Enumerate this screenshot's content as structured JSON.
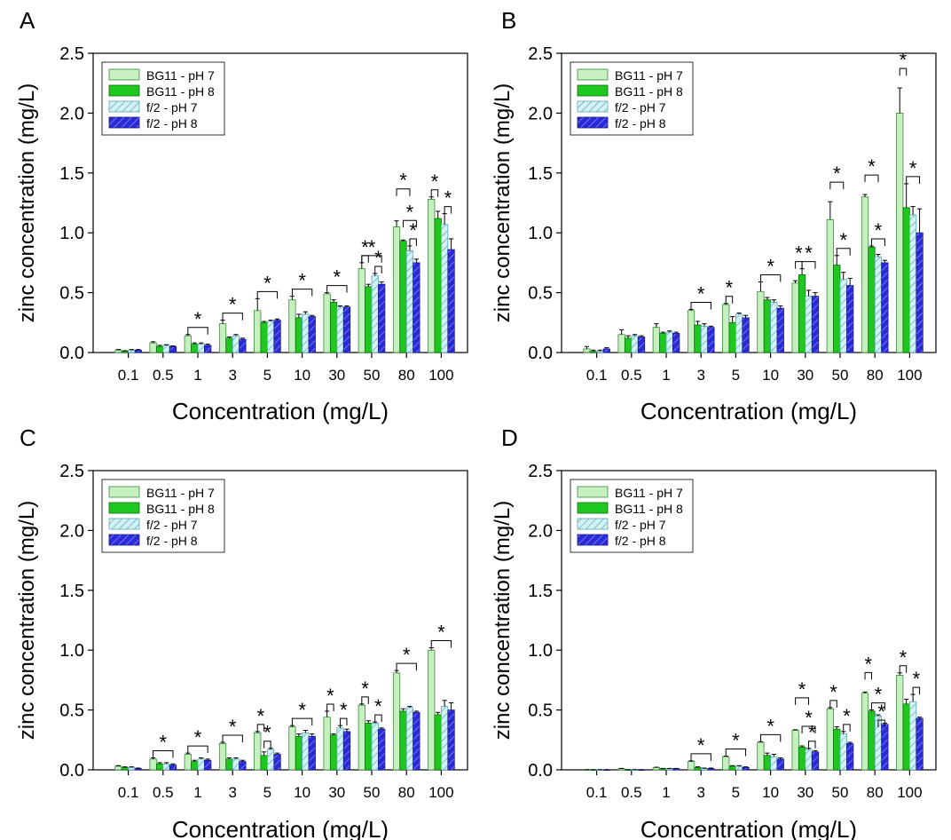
{
  "chart_data": [
    {
      "panel": "A",
      "type": "bar",
      "ylabel": "zinc concentration (mg/L)",
      "xlabel": "Concentration (mg/L)",
      "ylim": [
        0,
        2.5
      ],
      "yticks": [
        "0.0",
        "0.5",
        "1.0",
        "1.5",
        "2.0",
        "2.5"
      ],
      "categories": [
        "0.1",
        "0.5",
        "1",
        "3",
        "5",
        "10",
        "30",
        "50",
        "80",
        "100"
      ],
      "legend_position": "top-left",
      "series": [
        {
          "name": "BG11 - pH 7",
          "values": [
            0.02,
            0.08,
            0.14,
            0.24,
            0.35,
            0.44,
            0.49,
            0.7,
            1.05,
            1.28
          ],
          "errors": [
            0.005,
            0.01,
            0.01,
            0.03,
            0.1,
            0.03,
            0.01,
            0.05,
            0.05,
            0.02
          ]
        },
        {
          "name": "BG11 - pH 8",
          "values": [
            0.01,
            0.05,
            0.07,
            0.12,
            0.25,
            0.29,
            0.42,
            0.55,
            0.93,
            1.12
          ],
          "errors": [
            0.005,
            0.01,
            0.01,
            0.01,
            0.01,
            0.03,
            0.02,
            0.02,
            0.01,
            0.06
          ]
        },
        {
          "name": "f/2 - pH 7",
          "values": [
            0.02,
            0.06,
            0.07,
            0.14,
            0.26,
            0.32,
            0.38,
            0.64,
            0.85,
            1.07
          ],
          "errors": [
            0.005,
            0.005,
            0.01,
            0.01,
            0.01,
            0.02,
            0.01,
            0.02,
            0.04,
            0.09
          ]
        },
        {
          "name": "f/2 - pH 8",
          "values": [
            0.02,
            0.05,
            0.06,
            0.11,
            0.27,
            0.3,
            0.38,
            0.57,
            0.75,
            0.86
          ],
          "errors": [
            0.005,
            0.005,
            0.01,
            0.01,
            0.01,
            0.01,
            0.01,
            0.02,
            0.03,
            0.09
          ]
        }
      ],
      "significance": [
        {
          "from": 0,
          "to": 3,
          "height": 1
        },
        {
          "from": 0,
          "to": 3,
          "height": 1
        },
        {
          "from": 0,
          "to": 3,
          "height": 1
        },
        {
          "from": 0,
          "to": 3,
          "height": 1
        },
        {
          "from": 0,
          "to": 3,
          "height": 1
        },
        {
          "from": 0,
          "to": 3,
          "height": 1
        },
        {
          "from": 0,
          "to": 1,
          "height": 1
        },
        {
          "from": 2,
          "to": 3,
          "height": 1
        },
        {
          "from": 0,
          "to": 2,
          "height": 3
        },
        {
          "from": 1,
          "to": 3,
          "height": 2
        },
        {
          "from": 2,
          "to": 3,
          "height": 1
        },
        {
          "from": 0,
          "to": 1,
          "height": 1
        },
        {
          "from": 2,
          "to": 3,
          "height": 1
        }
      ],
      "significance_cat": [
        2,
        3,
        4,
        5,
        6,
        7,
        7,
        7,
        8,
        8,
        8,
        9,
        9
      ]
    },
    {
      "panel": "B",
      "type": "bar",
      "ylabel": "zinc concentration (mg/L)",
      "xlabel": "Concentration (mg/L)",
      "ylim": [
        0,
        2.5
      ],
      "yticks": [
        "0.0",
        "0.5",
        "1.0",
        "1.5",
        "2.0",
        "2.5"
      ],
      "categories": [
        "0.1",
        "0.5",
        "1",
        "3",
        "5",
        "10",
        "30",
        "50",
        "80",
        "100"
      ],
      "legend_position": "top-left",
      "series": [
        {
          "name": "BG11 - pH 7",
          "values": [
            0.03,
            0.15,
            0.21,
            0.35,
            0.4,
            0.51,
            0.58,
            1.11,
            1.3,
            2.0
          ],
          "errors": [
            0.02,
            0.04,
            0.03,
            0.01,
            0.01,
            0.08,
            0.02,
            0.15,
            0.02,
            0.21
          ]
        },
        {
          "name": "BG11 - pH 8",
          "values": [
            0.01,
            0.12,
            0.16,
            0.23,
            0.25,
            0.44,
            0.65,
            0.73,
            0.88,
            1.21
          ],
          "errors": [
            0.01,
            0.02,
            0.01,
            0.03,
            0.05,
            0.02,
            0.05,
            0.08,
            0.01,
            0.2
          ]
        },
        {
          "name": "f/2 - pH 7",
          "values": [
            0.01,
            0.14,
            0.17,
            0.22,
            0.32,
            0.42,
            0.47,
            0.61,
            0.8,
            1.15
          ],
          "errors": [
            0.01,
            0.01,
            0.01,
            0.02,
            0.01,
            0.02,
            0.05,
            0.06,
            0.02,
            0.07
          ]
        },
        {
          "name": "f/2 - pH 8",
          "values": [
            0.03,
            0.13,
            0.16,
            0.21,
            0.29,
            0.37,
            0.47,
            0.56,
            0.75,
            1.0
          ],
          "errors": [
            0.01,
            0.01,
            0.01,
            0.01,
            0.02,
            0.02,
            0.03,
            0.06,
            0.02,
            0.2
          ]
        }
      ],
      "significance": [
        {
          "from": 0,
          "to": 3,
          "height": 1
        },
        {
          "from": 0,
          "to": 1,
          "height": 1
        },
        {
          "from": 0,
          "to": 3,
          "height": 1
        },
        {
          "from": 0,
          "to": 1,
          "height": 1
        },
        {
          "from": 1,
          "to": 3,
          "height": 1
        },
        {
          "from": 0,
          "to": 2,
          "height": 2
        },
        {
          "from": 1,
          "to": 3,
          "height": 1
        },
        {
          "from": 0,
          "to": 2,
          "height": 2
        },
        {
          "from": 1,
          "to": 3,
          "height": 1
        },
        {
          "from": 0,
          "to": 1,
          "height": 2
        },
        {
          "from": 1,
          "to": 3,
          "height": 1
        }
      ],
      "significance_cat": [
        3,
        4,
        5,
        6,
        6,
        7,
        7,
        8,
        8,
        9,
        9
      ]
    },
    {
      "panel": "C",
      "type": "bar",
      "ylabel": "zinc concentration (mg/L)",
      "xlabel": "Concentration (mg/L)",
      "ylim": [
        0,
        2.5
      ],
      "yticks": [
        "0.0",
        "0.5",
        "1.0",
        "1.5",
        "2.0",
        "2.5"
      ],
      "categories": [
        "0.1",
        "0.5",
        "1",
        "3",
        "5",
        "10",
        "30",
        "50",
        "80",
        "100"
      ],
      "legend_position": "top-left",
      "series": [
        {
          "name": "BG11 - pH 7",
          "values": [
            0.03,
            0.09,
            0.13,
            0.22,
            0.31,
            0.36,
            0.44,
            0.54,
            0.81,
            1.0
          ],
          "errors": [
            0.005,
            0.01,
            0.01,
            0.01,
            0.01,
            0.01,
            0.05,
            0.01,
            0.02,
            0.02
          ]
        },
        {
          "name": "BG11 - pH 8",
          "values": [
            0.02,
            0.05,
            0.07,
            0.09,
            0.12,
            0.28,
            0.29,
            0.39,
            0.49,
            0.46
          ],
          "errors": [
            0.005,
            0.01,
            0.01,
            0.01,
            0.03,
            0.02,
            0.01,
            0.02,
            0.02,
            0.02
          ]
        },
        {
          "name": "f/2 - pH 7",
          "values": [
            0.02,
            0.05,
            0.09,
            0.09,
            0.17,
            0.31,
            0.35,
            0.39,
            0.52,
            0.53
          ],
          "errors": [
            0.005,
            0.01,
            0.01,
            0.01,
            0.01,
            0.02,
            0.02,
            0.01,
            0.01,
            0.05
          ]
        },
        {
          "name": "f/2 - pH 8",
          "values": [
            0.01,
            0.04,
            0.08,
            0.07,
            0.13,
            0.28,
            0.32,
            0.34,
            0.48,
            0.5
          ],
          "errors": [
            0.005,
            0.01,
            0.01,
            0.01,
            0.01,
            0.02,
            0.02,
            0.01,
            0.01,
            0.06
          ]
        }
      ],
      "significance": [
        {
          "from": 0,
          "to": 3,
          "height": 1
        },
        {
          "from": 0,
          "to": 3,
          "height": 1
        },
        {
          "from": 0,
          "to": 3,
          "height": 1
        },
        {
          "from": 0,
          "to": 1,
          "height": 1
        },
        {
          "from": 1,
          "to": 2,
          "height": 1
        },
        {
          "from": 0,
          "to": 3,
          "height": 1
        },
        {
          "from": 0,
          "to": 1,
          "height": 1
        },
        {
          "from": 2,
          "to": 3,
          "height": 1
        },
        {
          "from": 0,
          "to": 1,
          "height": 1
        },
        {
          "from": 2,
          "to": 3,
          "height": 1
        },
        {
          "from": 0,
          "to": 3,
          "height": 1
        },
        {
          "from": 0,
          "to": 3,
          "height": 1
        }
      ],
      "significance_cat": [
        1,
        2,
        3,
        4,
        4,
        5,
        6,
        6,
        7,
        7,
        8,
        9
      ]
    },
    {
      "panel": "D",
      "type": "bar",
      "ylabel": "zinc concentration (mg/L)",
      "xlabel": "Concentration (mg/L)",
      "ylim": [
        0,
        2.5
      ],
      "yticks": [
        "0.0",
        "0.5",
        "1.0",
        "1.5",
        "2.0",
        "2.5"
      ],
      "categories": [
        "0.1",
        "0.5",
        "1",
        "3",
        "5",
        "10",
        "30",
        "50",
        "80",
        "100"
      ],
      "legend_position": "top-left",
      "series": [
        {
          "name": "BG11 - pH 7",
          "values": [
            0.0,
            0.01,
            0.02,
            0.07,
            0.11,
            0.23,
            0.33,
            0.51,
            0.64,
            0.79
          ],
          "errors": [
            0.002,
            0.002,
            0.002,
            0.005,
            0.005,
            0.005,
            0.005,
            0.01,
            0.01,
            0.02
          ]
        },
        {
          "name": "BG11 - pH 8",
          "values": [
            0.0,
            0.0,
            0.01,
            0.02,
            0.03,
            0.12,
            0.19,
            0.34,
            0.49,
            0.55
          ],
          "errors": [
            0.002,
            0.002,
            0.002,
            0.005,
            0.005,
            0.02,
            0.01,
            0.02,
            0.01,
            0.04
          ]
        },
        {
          "name": "f/2 - pH 7",
          "values": [
            0.0,
            0.0,
            0.01,
            0.01,
            0.03,
            0.11,
            0.17,
            0.3,
            0.45,
            0.57
          ],
          "errors": [
            0.002,
            0.002,
            0.002,
            0.005,
            0.005,
            0.02,
            0.01,
            0.02,
            0.01,
            0.06
          ]
        },
        {
          "name": "f/2 - pH 8",
          "values": [
            0.0,
            0.0,
            0.01,
            0.01,
            0.02,
            0.09,
            0.15,
            0.22,
            0.38,
            0.43
          ],
          "errors": [
            0.002,
            0.002,
            0.002,
            0.005,
            0.005,
            0.01,
            0.01,
            0.01,
            0.01,
            0.01
          ]
        }
      ],
      "significance": [
        {
          "from": 0,
          "to": 3,
          "height": 1
        },
        {
          "from": 0,
          "to": 3,
          "height": 1
        },
        {
          "from": 0,
          "to": 3,
          "height": 1
        },
        {
          "from": 0,
          "to": 2,
          "height": 3
        },
        {
          "from": 1,
          "to": 3,
          "height": 2
        },
        {
          "from": 2,
          "to": 3,
          "height": 1
        },
        {
          "from": 0,
          "to": 1,
          "height": 1
        },
        {
          "from": 2,
          "to": 3,
          "height": 1
        },
        {
          "from": 0,
          "to": 1,
          "height": 2
        },
        {
          "from": 1,
          "to": 3,
          "height": 1
        },
        {
          "from": 2,
          "to": 3,
          "height": 0
        },
        {
          "from": 0,
          "to": 1,
          "height": 1
        },
        {
          "from": 2,
          "to": 3,
          "height": 1
        }
      ],
      "significance_cat": [
        3,
        4,
        5,
        6,
        6,
        6,
        7,
        7,
        8,
        8,
        8,
        9,
        9
      ]
    }
  ],
  "colors": {
    "bg11_ph7": "#c7f0c0",
    "bg11_ph8": "#1ec81e",
    "f2_ph7": "#bfe9ef",
    "f2_ph8": "#3333e0"
  },
  "star_symbol": "*"
}
